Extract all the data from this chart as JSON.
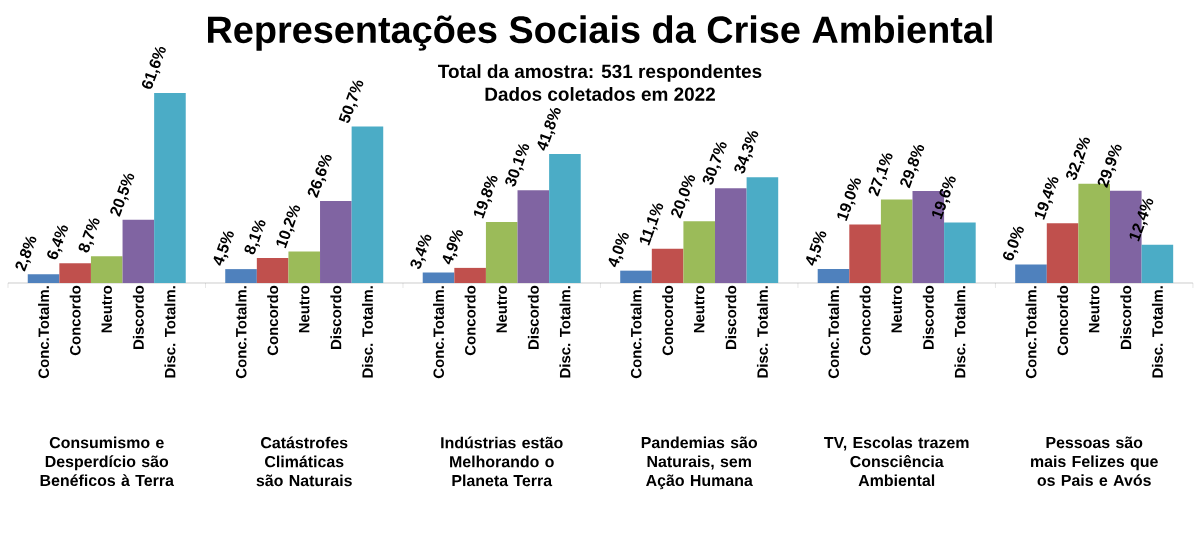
{
  "chart_data": {
    "type": "bar",
    "title": "Representações Sociais da Crise Ambiental",
    "subtitle": "Total da amostra: 531 respondentes",
    "annotations": [
      "Dados coletados em 2022"
    ],
    "categories": [
      "Consumismo e Desperdício são Benéficos à Terra",
      "Catástrofes Climáticas são Naturais",
      "Indústrias estão Melhorando o Planeta Terra",
      "Pandemias são Naturais, sem Ação Humana",
      "TV, Escolas trazem Consciência Ambiental",
      "Pessoas são mais Felizes que os Pais e Avós"
    ],
    "series": [
      {
        "name": "Conc.Totalm.",
        "color": "#4f81bd",
        "values": [
          2.8,
          4.5,
          3.4,
          4.0,
          4.5,
          6.0
        ],
        "value_labels": [
          "2,8%",
          "4,5%",
          "3,4%",
          "4,0%",
          "4,5%",
          "6,0%"
        ]
      },
      {
        "name": "Concordo",
        "color": "#c0504d",
        "values": [
          6.4,
          8.1,
          4.9,
          11.1,
          19.0,
          19.4
        ],
        "value_labels": [
          "6,4%",
          "8,1%",
          "4,9%",
          "11,1%",
          "19,0%",
          "19,4%"
        ]
      },
      {
        "name": "Neutro",
        "color": "#9bbb59",
        "values": [
          8.7,
          10.2,
          19.8,
          20.0,
          27.1,
          32.2
        ],
        "value_labels": [
          "8,7%",
          "10,2%",
          "19,8%",
          "20,0%",
          "27,1%",
          "32,2%"
        ]
      },
      {
        "name": "Discordo",
        "color": "#8064a2",
        "values": [
          20.5,
          26.6,
          30.1,
          30.7,
          29.8,
          29.9
        ],
        "value_labels": [
          "20,5%",
          "26,6%",
          "30,1%",
          "30,7%",
          "29,8%",
          "29,9%"
        ]
      },
      {
        "name": "Disc. Totalm.",
        "color": "#4bacc6",
        "values": [
          61.6,
          50.7,
          41.8,
          34.3,
          19.6,
          12.4
        ],
        "value_labels": [
          "61,6%",
          "50,7%",
          "41,8%",
          "34,3%",
          "19,6%",
          "12,4%"
        ]
      }
    ]
  }
}
